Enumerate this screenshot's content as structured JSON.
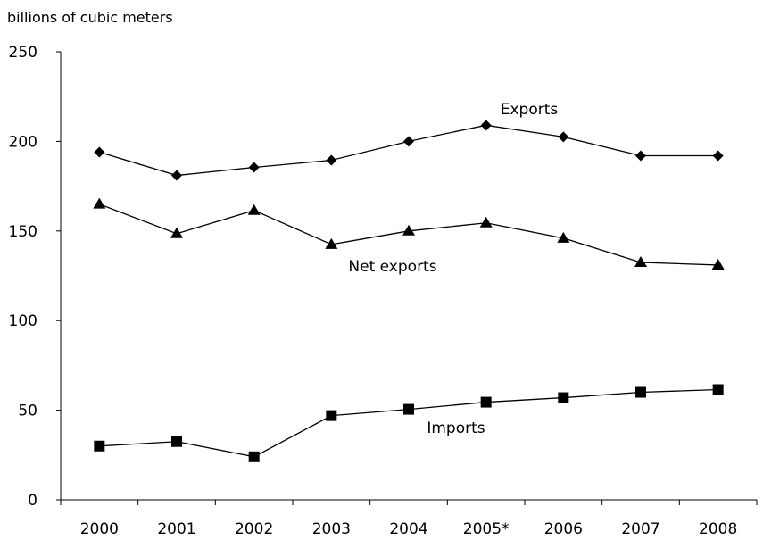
{
  "chart_data": {
    "type": "line",
    "ylabel": "billions of cubic meters",
    "ylim": [
      0,
      250
    ],
    "yticks": [
      0,
      50,
      100,
      150,
      200,
      250
    ],
    "categories": [
      "2000",
      "2001",
      "2002",
      "2003",
      "2004",
      "2005*",
      "2006",
      "2007",
      "2008"
    ],
    "grid": false,
    "series": [
      {
        "name": "Exports",
        "marker": "diamond",
        "values": [
          194,
          181,
          185.5,
          189.5,
          200,
          209,
          202.5,
          192,
          192
        ]
      },
      {
        "name": "Net exports",
        "marker": "triangle",
        "values": [
          165,
          148.5,
          161.5,
          142.5,
          150,
          154.5,
          146,
          132.5,
          131
        ]
      },
      {
        "name": "Imports",
        "marker": "square",
        "values": [
          30,
          32.5,
          24,
          47,
          50.5,
          54.5,
          57,
          60,
          61.5
        ]
      }
    ],
    "colors": {
      "line": "#000000",
      "background": "#ffffff"
    }
  }
}
